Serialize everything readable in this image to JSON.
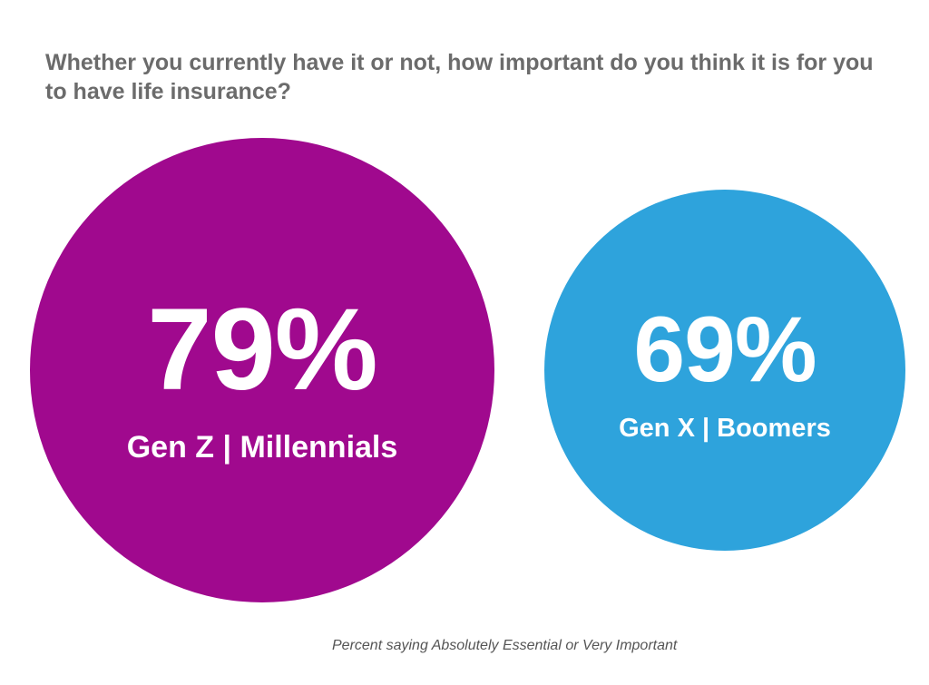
{
  "chart_data": {
    "type": "bubble",
    "title": "Whether you currently have it or not, how important do you think it is for you to have life insurance?",
    "footnote": "Percent saying Absolutely Essential or Very Important",
    "unit": "%",
    "series": [
      {
        "label": "Gen Z | Millennials",
        "value": 79,
        "value_label": "79%",
        "color": "#a0098e"
      },
      {
        "label": "Gen X | Boomers",
        "value": 69,
        "value_label": "69%",
        "color": "#2ea3dc"
      }
    ]
  }
}
